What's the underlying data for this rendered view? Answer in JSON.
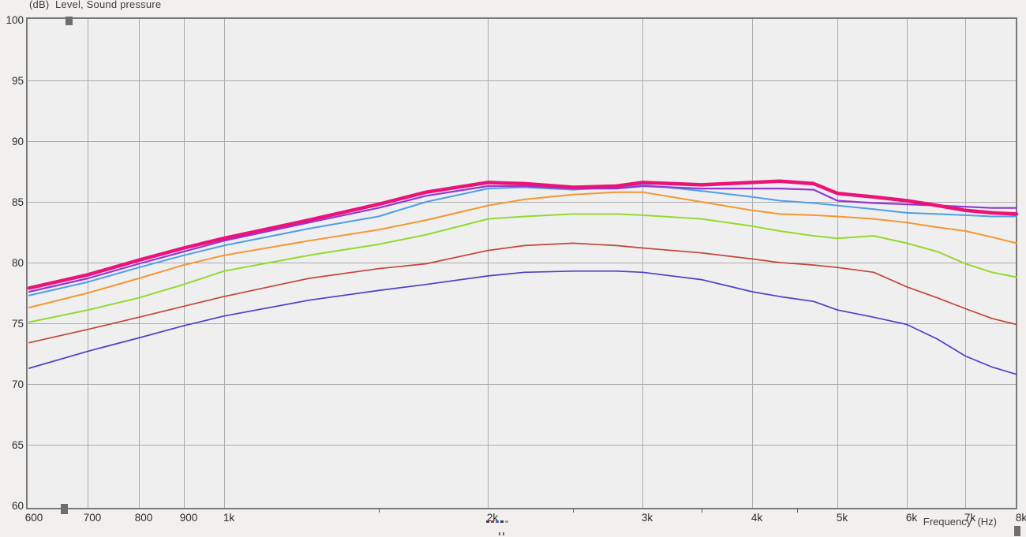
{
  "chart": {
    "title": "(dB)  Level, Sound pressure",
    "xlabel": "Frequency  (Hz)"
  },
  "colors": {
    "background": "#F1F0EE",
    "plot_background": "#EFEFEF",
    "gridline": "#ABABAB",
    "frame": "#7A7A7A",
    "text": "#2B2B2B",
    "handle": "#6E6E6E"
  },
  "chart_data": {
    "type": "line",
    "title": "(dB)  Level, Sound pressure",
    "xlabel": "Frequency (Hz)",
    "ylabel": "Sound pressure level (dB)",
    "x_scale": "log",
    "xlim": [
      600,
      8000
    ],
    "ylim": [
      60,
      100
    ],
    "grid": true,
    "legend": "none",
    "y_ticks": [
      100,
      95,
      90,
      85,
      80,
      75,
      70,
      65,
      60
    ],
    "x_tick_values": [
      600,
      700,
      800,
      900,
      1000,
      2000,
      3000,
      4000,
      5000,
      6000,
      7000,
      8000
    ],
    "x_tick_labels": [
      "600",
      "700",
      "800",
      "900",
      "1k",
      "2k",
      "3k",
      "4k",
      "5k",
      "6k",
      "7k",
      "8k"
    ],
    "x_minor_ticks": [
      1500,
      2500,
      3500,
      4500
    ],
    "x": [
      600,
      700,
      800,
      900,
      1000,
      1250,
      1500,
      1700,
      2000,
      2200,
      2500,
      2800,
      3000,
      3500,
      4000,
      4300,
      4700,
      5000,
      5500,
      6000,
      6500,
      7000,
      7500,
      8000
    ],
    "series": [
      {
        "name": "curve-dark-blue",
        "color": "#4A42C6",
        "width": 1.7,
        "values": [
          71.3,
          72.7,
          73.8,
          74.8,
          75.6,
          76.9,
          77.7,
          78.2,
          78.9,
          79.2,
          79.3,
          79.3,
          79.2,
          78.6,
          77.6,
          77.2,
          76.8,
          76.1,
          75.5,
          74.9,
          73.7,
          72.3,
          71.4,
          70.8
        ]
      },
      {
        "name": "curve-brick-red",
        "color": "#C2473A",
        "width": 1.7,
        "values": [
          73.4,
          74.5,
          75.5,
          76.4,
          77.2,
          78.7,
          79.5,
          79.9,
          81.0,
          81.4,
          81.6,
          81.4,
          81.2,
          80.8,
          80.3,
          80.0,
          79.8,
          79.6,
          79.2,
          78.0,
          77.1,
          76.2,
          75.4,
          74.9
        ]
      },
      {
        "name": "curve-green",
        "color": "#94D92E",
        "width": 2,
        "values": [
          75.1,
          76.1,
          77.1,
          78.2,
          79.3,
          80.6,
          81.5,
          82.3,
          83.6,
          83.8,
          84.0,
          84.0,
          83.9,
          83.6,
          83.0,
          82.6,
          82.2,
          82.0,
          82.2,
          81.6,
          80.9,
          79.9,
          79.2,
          78.8
        ]
      },
      {
        "name": "curve-orange",
        "color": "#F59632",
        "width": 2,
        "values": [
          76.3,
          77.5,
          78.7,
          79.8,
          80.6,
          81.8,
          82.7,
          83.5,
          84.7,
          85.2,
          85.6,
          85.8,
          85.8,
          85.0,
          84.3,
          84.0,
          83.9,
          83.8,
          83.6,
          83.3,
          82.9,
          82.6,
          82.1,
          81.6
        ]
      },
      {
        "name": "curve-light-blue",
        "color": "#4D9EE8",
        "width": 2,
        "values": [
          77.3,
          78.4,
          79.6,
          80.6,
          81.4,
          82.8,
          83.8,
          85.0,
          86.1,
          86.2,
          86.0,
          86.2,
          86.4,
          85.9,
          85.4,
          85.1,
          84.9,
          84.7,
          84.4,
          84.1,
          84.0,
          83.9,
          83.8,
          83.8
        ]
      },
      {
        "name": "curve-purple",
        "color": "#9038D8",
        "width": 2.2,
        "values": [
          77.6,
          78.7,
          79.9,
          80.9,
          81.8,
          83.3,
          84.5,
          85.5,
          86.3,
          86.3,
          86.1,
          86.1,
          86.3,
          86.1,
          86.1,
          86.1,
          86.0,
          85.1,
          84.9,
          84.8,
          84.7,
          84.6,
          84.5,
          84.5
        ]
      },
      {
        "name": "curve-magenta-thick",
        "color": "#EC1278",
        "width": 4.5,
        "values": [
          77.9,
          79.0,
          80.2,
          81.2,
          82.0,
          83.5,
          84.8,
          85.8,
          86.6,
          86.5,
          86.2,
          86.3,
          86.6,
          86.4,
          86.6,
          86.7,
          86.5,
          85.7,
          85.4,
          85.1,
          84.7,
          84.3,
          84.1,
          84.0
        ]
      }
    ]
  }
}
